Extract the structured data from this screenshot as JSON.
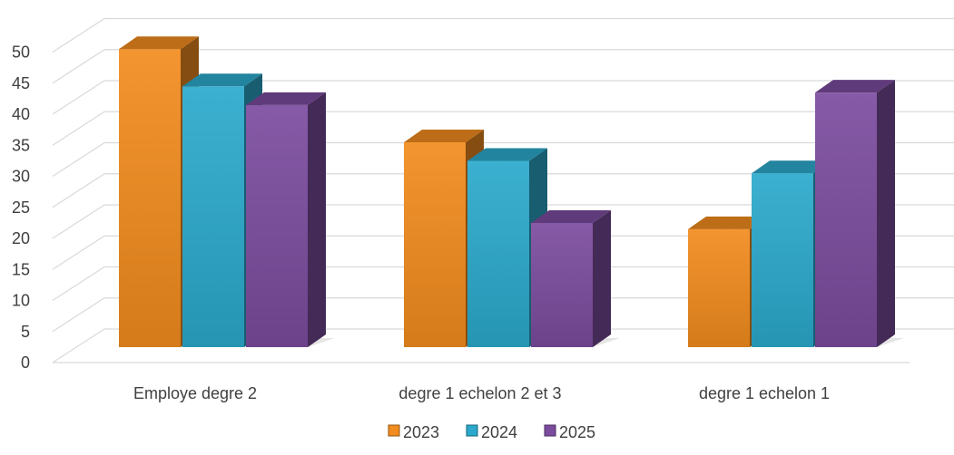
{
  "chart_data": {
    "type": "bar",
    "style": "3d-clustered-column",
    "categories": [
      "Employe degre 2",
      "degre 1 echelon 2 et 3",
      "degre 1 echelon 1"
    ],
    "series": [
      {
        "name": "2023",
        "values": [
          48,
          33,
          19
        ],
        "color": "#F28C1E"
      },
      {
        "name": "2024",
        "values": [
          42,
          30,
          28
        ],
        "color": "#2BA9CC"
      },
      {
        "name": "2025",
        "values": [
          39,
          20,
          41
        ],
        "color": "#7B4C9E"
      }
    ],
    "ylim": [
      0,
      50
    ],
    "yticks": [
      0,
      5,
      10,
      15,
      20,
      25,
      30,
      35,
      40,
      45,
      50
    ],
    "grid": true,
    "legend_position": "bottom"
  }
}
